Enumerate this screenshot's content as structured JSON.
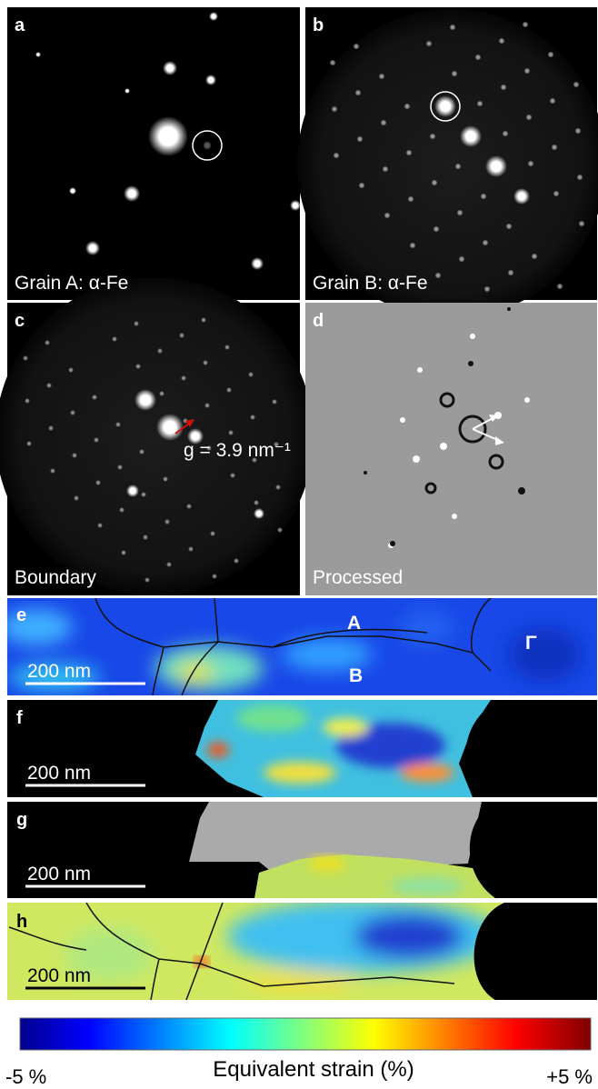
{
  "panels": [
    {
      "label": "a",
      "caption": "Grain A: α-Fe"
    },
    {
      "label": "b",
      "caption": "Grain B: α-Fe"
    },
    {
      "label": "c",
      "caption": "Boundary"
    },
    {
      "label": "d",
      "caption": "Processed"
    }
  ],
  "annotations": {
    "g_vector": "g = 3.9 nm⁻¹",
    "grain_a": "A",
    "grain_b": "B",
    "gamma": "Γ"
  },
  "maps": [
    {
      "label": "e",
      "scale_bar": "200 nm"
    },
    {
      "label": "f",
      "scale_bar": "200 nm"
    },
    {
      "label": "g",
      "scale_bar": "200 nm"
    },
    {
      "label": "h",
      "scale_bar": "200 nm"
    }
  ],
  "colorbar": {
    "min_label": "-5 %",
    "title": "Equivalent strain (%)",
    "max_label": "+5 %"
  }
}
